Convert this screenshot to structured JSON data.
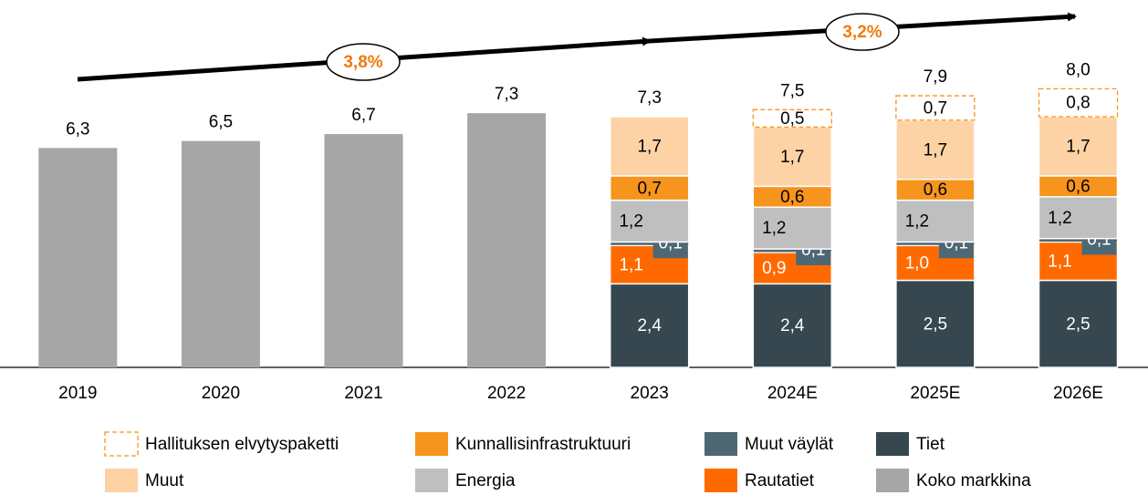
{
  "chart_data": {
    "type": "stacked_bar",
    "categories": [
      "2019",
      "2020",
      "2021",
      "2022",
      "2023",
      "2024E",
      "2025E",
      "2026E"
    ],
    "ylim": [
      0,
      10.55
    ],
    "series": [
      {
        "name": "Tiet",
        "color": "#37474f",
        "values": [
          null,
          null,
          null,
          null,
          2.4,
          2.4,
          2.5,
          2.5
        ],
        "value_labels": [
          null,
          null,
          null,
          null,
          "2,4",
          "2,4",
          "2,5",
          "2,5"
        ]
      },
      {
        "name": "Rautatiet",
        "color": "#ff6a00",
        "values": [
          null,
          null,
          null,
          null,
          1.1,
          0.9,
          1.0,
          1.1
        ],
        "value_labels": [
          null,
          null,
          null,
          null,
          "1,1",
          "0,9",
          "1,0",
          "1,1"
        ]
      },
      {
        "name": "Muut väylät",
        "color": "#4d6874",
        "values": [
          null,
          null,
          null,
          null,
          0.1,
          0.1,
          0.1,
          0.1
        ],
        "value_labels": [
          null,
          null,
          null,
          null,
          "0,1",
          "0,1",
          "0,1",
          "0,1"
        ]
      },
      {
        "name": "Energia",
        "color": "#bfbfbf",
        "values": [
          null,
          null,
          null,
          null,
          1.2,
          1.2,
          1.2,
          1.2
        ],
        "value_labels": [
          null,
          null,
          null,
          null,
          "1,2",
          "1,2",
          "1,2",
          "1,2"
        ]
      },
      {
        "name": "Kunnallisinfrastruktuuri",
        "color": "#f7941d",
        "values": [
          null,
          null,
          null,
          null,
          0.7,
          0.6,
          0.6,
          0.6
        ],
        "value_labels": [
          null,
          null,
          null,
          null,
          "0,7",
          "0,6",
          "0,6",
          "0,6"
        ]
      },
      {
        "name": "Muut",
        "color": "#fdd3a6",
        "values": [
          null,
          null,
          null,
          null,
          1.7,
          1.7,
          1.7,
          1.7
        ],
        "value_labels": [
          null,
          null,
          null,
          null,
          "1,7",
          "1,7",
          "1,7",
          "1,7"
        ]
      },
      {
        "name": "Hallituksen elvytyspaketti",
        "color": "#f7941d",
        "values": [
          null,
          null,
          null,
          null,
          null,
          0.5,
          0.7,
          0.8
        ],
        "value_labels": [
          null,
          null,
          null,
          null,
          null,
          "0,5",
          "0,7",
          "0,8"
        ]
      },
      {
        "name": "Koko markkina",
        "color": "#a6a6a6",
        "values": [
          6.3,
          6.5,
          6.7,
          7.3,
          null,
          null,
          null,
          null
        ],
        "value_labels": [
          "6,3",
          "6,5",
          "6,7",
          "7,3",
          null,
          null,
          null,
          null
        ]
      }
    ],
    "totals": [
      null,
      null,
      null,
      null,
      7.3,
      7.5,
      7.9,
      8.0
    ],
    "total_labels": [
      null,
      null,
      null,
      null,
      "7,3",
      "7,5",
      "7,9",
      "8,0"
    ],
    "annotations": [
      {
        "label": "3,8%"
      },
      {
        "label": "3,2%"
      }
    ]
  }
}
